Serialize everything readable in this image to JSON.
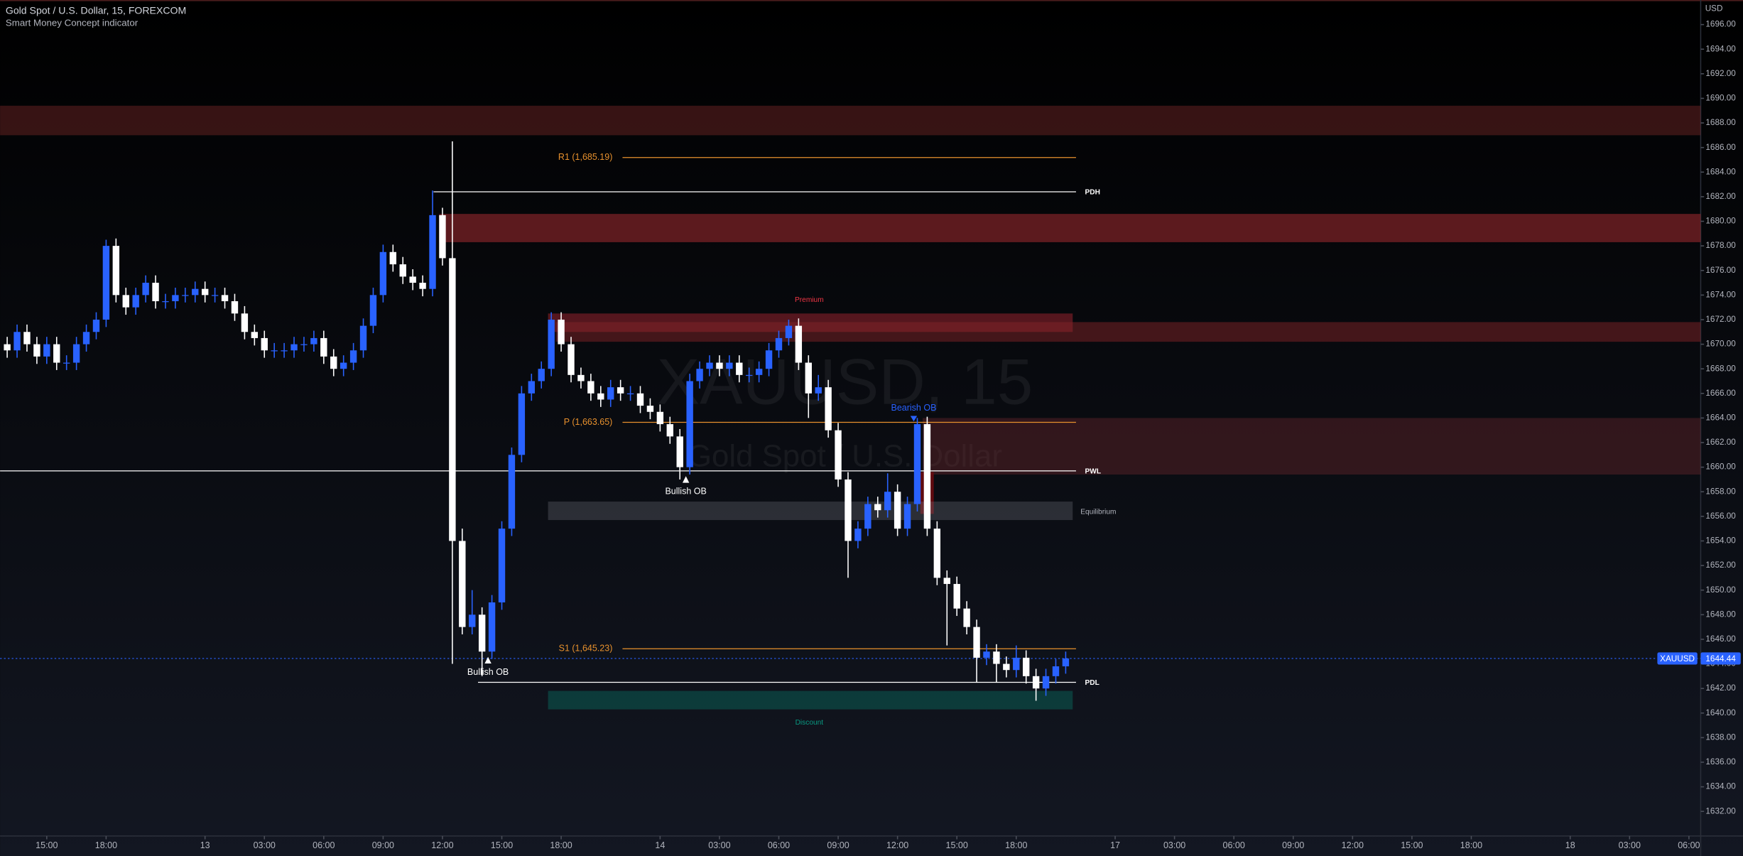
{
  "header": {
    "title": "Gold Spot / U.S. Dollar, 15, FOREXCOM",
    "indicator": "Smart Money Concept indicator"
  },
  "chart_data": {
    "type": "candlestick",
    "symbol": "XAUUSD",
    "currency": "USD",
    "watermark_title": "XAUUSD, 15",
    "watermark_subtitle": "Gold Spot / U.S. Dollar",
    "up_color": "#2962ff",
    "down_color": "#ffffff",
    "last_price": 1644.44,
    "x": [
      -8,
      -6,
      -4,
      -2,
      0,
      2,
      4,
      6,
      8,
      10,
      12,
      14,
      16,
      18,
      20,
      22,
      24,
      26,
      28,
      30,
      32,
      34,
      36,
      38,
      40,
      42,
      44,
      46,
      48,
      50,
      52,
      54,
      56,
      58,
      60,
      62,
      64,
      66,
      68,
      70,
      72,
      74,
      76,
      78,
      80,
      82,
      84,
      86,
      88,
      90,
      92,
      94,
      96,
      98,
      100,
      102,
      104,
      106,
      108,
      110,
      112,
      114,
      116,
      118,
      120,
      122,
      124,
      126,
      128,
      130,
      132,
      134,
      136,
      138,
      140,
      142,
      144,
      146,
      148,
      150,
      152,
      154,
      156,
      158,
      160,
      162,
      164,
      166,
      168,
      170,
      172,
      174,
      176,
      178,
      180,
      182,
      184,
      186,
      188,
      190,
      192,
      194,
      196,
      198,
      200,
      202,
      204,
      206
    ],
    "candles": [
      [
        1670,
        1670.6,
        1668.9,
        1669.5
      ],
      [
        1669.5,
        1671.6,
        1668.9,
        1671
      ],
      [
        1671,
        1671.6,
        1669.4,
        1670
      ],
      [
        1670,
        1670.6,
        1668.4,
        1669
      ],
      [
        1669,
        1670.6,
        1668.4,
        1670
      ],
      [
        1670,
        1670.6,
        1667.9,
        1668.5
      ],
      [
        1668.5,
        1669.1,
        1667.9,
        1668.5
      ],
      [
        1668.5,
        1670.6,
        1667.9,
        1670
      ],
      [
        1670,
        1671.6,
        1669.4,
        1671
      ],
      [
        1671,
        1672.6,
        1670.4,
        1672
      ],
      [
        1672,
        1678.5,
        1671.4,
        1678
      ],
      [
        1678,
        1678.6,
        1673.4,
        1674
      ],
      [
        1674,
        1674.6,
        1672.4,
        1673
      ],
      [
        1673,
        1674.6,
        1672.4,
        1674
      ],
      [
        1674,
        1675.6,
        1673.4,
        1675
      ],
      [
        1675,
        1675.6,
        1672.9,
        1673.5
      ],
      [
        1673.5,
        1674.1,
        1672.9,
        1673.5
      ],
      [
        1673.5,
        1674.6,
        1672.9,
        1674
      ],
      [
        1674,
        1674.6,
        1673.4,
        1674
      ],
      [
        1674,
        1675.1,
        1673.4,
        1674.5
      ],
      [
        1674.5,
        1675.1,
        1673.4,
        1674
      ],
      [
        1674,
        1674.6,
        1673.4,
        1674
      ],
      [
        1674,
        1674.6,
        1672.9,
        1673.5
      ],
      [
        1673.5,
        1674.1,
        1671.9,
        1672.5
      ],
      [
        1672.5,
        1673.1,
        1670.4,
        1671
      ],
      [
        1671,
        1671.6,
        1669.9,
        1670.5
      ],
      [
        1670.5,
        1671.1,
        1668.9,
        1669.5
      ],
      [
        1669.5,
        1670.1,
        1668.9,
        1669.5
      ],
      [
        1669.5,
        1670.1,
        1668.9,
        1669.5
      ],
      [
        1669.5,
        1670.6,
        1668.9,
        1670
      ],
      [
        1670,
        1670.6,
        1669.4,
        1670
      ],
      [
        1670,
        1671.1,
        1669.4,
        1670.5
      ],
      [
        1670.5,
        1671.1,
        1668.4,
        1669
      ],
      [
        1669,
        1669.6,
        1667.4,
        1668
      ],
      [
        1668,
        1669.1,
        1667.4,
        1668.5
      ],
      [
        1668.5,
        1670.1,
        1667.9,
        1669.5
      ],
      [
        1669.5,
        1672.1,
        1668.9,
        1671.5
      ],
      [
        1671.5,
        1674.6,
        1670.9,
        1674
      ],
      [
        1674,
        1678.1,
        1673.4,
        1677.5
      ],
      [
        1677.5,
        1678.1,
        1675.9,
        1676.5
      ],
      [
        1676.5,
        1677.1,
        1674.9,
        1675.5
      ],
      [
        1675.5,
        1676.1,
        1674.4,
        1675
      ],
      [
        1675,
        1675.6,
        1673.9,
        1674.5
      ],
      [
        1674.5,
        1682.5,
        1673.9,
        1680.5
      ],
      [
        1680.5,
        1681.1,
        1676.4,
        1677
      ],
      [
        1677,
        1686.5,
        1644,
        1654
      ],
      [
        1654,
        1655,
        1646.4,
        1647
      ],
      [
        1647,
        1650,
        1646.4,
        1648
      ],
      [
        1648,
        1648.6,
        1643,
        1645
      ],
      [
        1645,
        1649.6,
        1644.4,
        1649
      ],
      [
        1649,
        1655.6,
        1648.4,
        1655
      ],
      [
        1655,
        1661.6,
        1654.4,
        1661
      ],
      [
        1661,
        1666.6,
        1660.4,
        1666
      ],
      [
        1666,
        1667.6,
        1665.4,
        1667
      ],
      [
        1667,
        1668.6,
        1666.4,
        1668
      ],
      [
        1668,
        1672.6,
        1667.4,
        1672
      ],
      [
        1672,
        1672.6,
        1669.4,
        1670
      ],
      [
        1670,
        1670.6,
        1666.9,
        1667.5
      ],
      [
        1667.5,
        1668.1,
        1666.4,
        1667
      ],
      [
        1667,
        1667.6,
        1665.4,
        1666
      ],
      [
        1666,
        1666.6,
        1664.9,
        1665.5
      ],
      [
        1665.5,
        1667.1,
        1664.9,
        1666.5
      ],
      [
        1666.5,
        1667.1,
        1665.4,
        1666
      ],
      [
        1666,
        1666.6,
        1665.4,
        1666
      ],
      [
        1666,
        1666.6,
        1664.4,
        1665
      ],
      [
        1665,
        1665.6,
        1663.9,
        1664.5
      ],
      [
        1664.5,
        1665.1,
        1662.9,
        1663.5
      ],
      [
        1663.5,
        1664.1,
        1661.9,
        1662.5
      ],
      [
        1662.5,
        1663.1,
        1659,
        1660
      ],
      [
        1660,
        1667.6,
        1659.4,
        1667
      ],
      [
        1667,
        1668.6,
        1666.4,
        1668
      ],
      [
        1668,
        1669.1,
        1667.4,
        1668.5
      ],
      [
        1668.5,
        1669.1,
        1667.4,
        1668
      ],
      [
        1668,
        1669.1,
        1667.4,
        1668.5
      ],
      [
        1668.5,
        1669.1,
        1666.9,
        1667.5
      ],
      [
        1667.5,
        1668.1,
        1666.9,
        1667.5
      ],
      [
        1667.5,
        1668.6,
        1666.9,
        1668
      ],
      [
        1668,
        1670.1,
        1667.4,
        1669.5
      ],
      [
        1669.5,
        1671.1,
        1668.9,
        1670.5
      ],
      [
        1670.5,
        1672,
        1669.9,
        1671.5
      ],
      [
        1671.5,
        1672.1,
        1667.9,
        1668.5
      ],
      [
        1668.5,
        1669.1,
        1664,
        1666
      ],
      [
        1666,
        1667.5,
        1665.4,
        1666.5
      ],
      [
        1666.5,
        1667.1,
        1662.4,
        1663
      ],
      [
        1663,
        1663.6,
        1658.4,
        1659
      ],
      [
        1659,
        1659.6,
        1651,
        1654
      ],
      [
        1654,
        1655.6,
        1653.4,
        1655
      ],
      [
        1655,
        1657.6,
        1654.4,
        1657
      ],
      [
        1657,
        1657.6,
        1655.9,
        1656.5
      ],
      [
        1656.5,
        1659.5,
        1655.9,
        1658
      ],
      [
        1658,
        1658.6,
        1654.4,
        1655
      ],
      [
        1655,
        1657.6,
        1654.4,
        1657
      ],
      [
        1657,
        1664,
        1656.4,
        1663.5
      ],
      [
        1663.5,
        1664.1,
        1654.4,
        1655
      ],
      [
        1655,
        1655.6,
        1650.4,
        1651
      ],
      [
        1651,
        1651.6,
        1645.5,
        1650.5
      ],
      [
        1650.5,
        1651.1,
        1647.9,
        1648.5
      ],
      [
        1648.5,
        1649.1,
        1646.4,
        1647
      ],
      [
        1647,
        1647.6,
        1642.5,
        1644.5
      ],
      [
        1644.5,
        1645.6,
        1643.9,
        1645
      ],
      [
        1645,
        1645.6,
        1642.5,
        1644
      ],
      [
        1644,
        1644.6,
        1642.9,
        1643.5
      ],
      [
        1643.5,
        1645.5,
        1642.9,
        1644.5
      ],
      [
        1644.5,
        1645.1,
        1642.4,
        1643
      ],
      [
        1643,
        1643.6,
        1641,
        1642
      ],
      [
        1642,
        1643.6,
        1641.4,
        1643
      ],
      [
        1643,
        1644.4,
        1642.4,
        1643.8
      ],
      [
        1643.8,
        1645,
        1643.2,
        1644.44
      ]
    ],
    "xlim": [
      -9.44,
      334.38
    ],
    "xticks": [
      {
        "value": 0,
        "label": "15:00"
      },
      {
        "value": 12,
        "label": "18:00"
      },
      {
        "value": 32,
        "label": "13"
      },
      {
        "value": 44,
        "label": "03:00"
      },
      {
        "value": 56,
        "label": "06:00"
      },
      {
        "value": 68,
        "label": "09:00"
      },
      {
        "value": 80,
        "label": "12:00"
      },
      {
        "value": 92,
        "label": "15:00"
      },
      {
        "value": 104,
        "label": "18:00"
      },
      {
        "value": 124,
        "label": "14"
      },
      {
        "value": 136,
        "label": "03:00"
      },
      {
        "value": 148,
        "label": "06:00"
      },
      {
        "value": 160,
        "label": "09:00"
      },
      {
        "value": 172,
        "label": "12:00"
      },
      {
        "value": 184,
        "label": "15:00"
      },
      {
        "value": 196,
        "label": "18:00"
      },
      {
        "value": 216,
        "label": "17"
      },
      {
        "value": 228,
        "label": "03:00"
      },
      {
        "value": 240,
        "label": "06:00"
      },
      {
        "value": 252,
        "label": "09:00"
      },
      {
        "value": 264,
        "label": "12:00"
      },
      {
        "value": 276,
        "label": "15:00"
      },
      {
        "value": 288,
        "label": "18:00"
      },
      {
        "value": 308,
        "label": "18"
      },
      {
        "value": 320,
        "label": "03:00"
      },
      {
        "value": 332,
        "label": "06:00"
      }
    ],
    "ylim": [
      1630,
      1698
    ],
    "yticks": [
      {
        "value": 1632,
        "label": "1632.00"
      },
      {
        "value": 1634,
        "label": "1634.00"
      },
      {
        "value": 1636,
        "label": "1636.00"
      },
      {
        "value": 1638,
        "label": "1638.00"
      },
      {
        "value": 1640,
        "label": "1640.00"
      },
      {
        "value": 1642,
        "label": "1642.00"
      },
      {
        "value": 1644,
        "label": "1644.00"
      },
      {
        "value": 1646,
        "label": "1646.00"
      },
      {
        "value": 1648,
        "label": "1648.00"
      },
      {
        "value": 1650,
        "label": "1650.00"
      },
      {
        "value": 1652,
        "label": "1652.00"
      },
      {
        "value": 1654,
        "label": "1654.00"
      },
      {
        "value": 1656,
        "label": "1656.00"
      },
      {
        "value": 1658,
        "label": "1658.00"
      },
      {
        "value": 1660,
        "label": "1660.00"
      },
      {
        "value": 1662,
        "label": "1662.00"
      },
      {
        "value": 1664,
        "label": "1664.00"
      },
      {
        "value": 1666,
        "label": "1666.00"
      },
      {
        "value": 1668,
        "label": "1668.00"
      },
      {
        "value": 1670,
        "label": "1670.00"
      },
      {
        "value": 1672,
        "label": "1672.00"
      },
      {
        "value": 1674,
        "label": "1674.00"
      },
      {
        "value": 1676,
        "label": "1676.00"
      },
      {
        "value": 1678,
        "label": "1678.00"
      },
      {
        "value": 1680,
        "label": "1680.00"
      },
      {
        "value": 1682,
        "label": "1682.00"
      },
      {
        "value": 1684,
        "label": "1684.00"
      },
      {
        "value": 1686,
        "label": "1686.00"
      },
      {
        "value": 1688,
        "label": "1688.00"
      },
      {
        "value": 1690,
        "label": "1690.00"
      },
      {
        "value": 1692,
        "label": "1692.00"
      },
      {
        "value": 1694,
        "label": "1694.00"
      },
      {
        "value": 1696,
        "label": "1696.00"
      }
    ],
    "zones": [
      {
        "top": 1689.4,
        "bottom": 1687.0,
        "color": "rgba(120,40,40,0.45)"
      },
      {
        "top": 1680.6,
        "bottom": 1678.3,
        "color": "rgba(150,40,45,0.6)"
      },
      {
        "top": 1672.5,
        "bottom": 1671.0,
        "color": "rgba(150,35,45,0.55)",
        "label": "Premium",
        "label_color": "#f23645"
      },
      {
        "top": 1671.8,
        "bottom": 1670.2,
        "color": "rgba(130,35,40,0.5)"
      },
      {
        "top": 1664.0,
        "bottom": 1659.4,
        "color": "rgba(110,40,45,0.4)"
      },
      {
        "top": 1659.6,
        "bottom": 1656.2,
        "color": "rgba(110,10,15,0.85)"
      },
      {
        "top": 1657.2,
        "bottom": 1655.7,
        "color": "rgba(120,123,134,0.3)",
        "label": "Equilibrium",
        "label_color": "#b2b5be"
      },
      {
        "top": 1641.8,
        "bottom": 1640.3,
        "color": "rgba(8,153,129,0.3)",
        "label": "Discount",
        "label_color": "#089981"
      }
    ],
    "levels": [
      {
        "label": "R1 (1,685.19)",
        "value": 1685.19,
        "color": "#e8912d"
      },
      {
        "label": "PDH",
        "value": 1682.4,
        "color": "#ffffff"
      },
      {
        "label": "P (1,663.65)",
        "value": 1663.65,
        "color": "#e8912d"
      },
      {
        "label": "PWL",
        "value": 1659.7,
        "color": "#ffffff"
      },
      {
        "label": "S1 (1,645.23)",
        "value": 1645.23,
        "color": "#e8912d"
      },
      {
        "label": "PDL",
        "value": 1642.5,
        "color": "#ffffff"
      }
    ],
    "markers": [
      {
        "label": "Bearish OB",
        "value": 1663.9,
        "color": "#2962ff"
      },
      {
        "label": "Bullish OB",
        "value": 1659.0,
        "color": "#ffffff"
      },
      {
        "label": "Bullish OB",
        "value": 1644.3,
        "color": "#ffffff"
      }
    ]
  }
}
